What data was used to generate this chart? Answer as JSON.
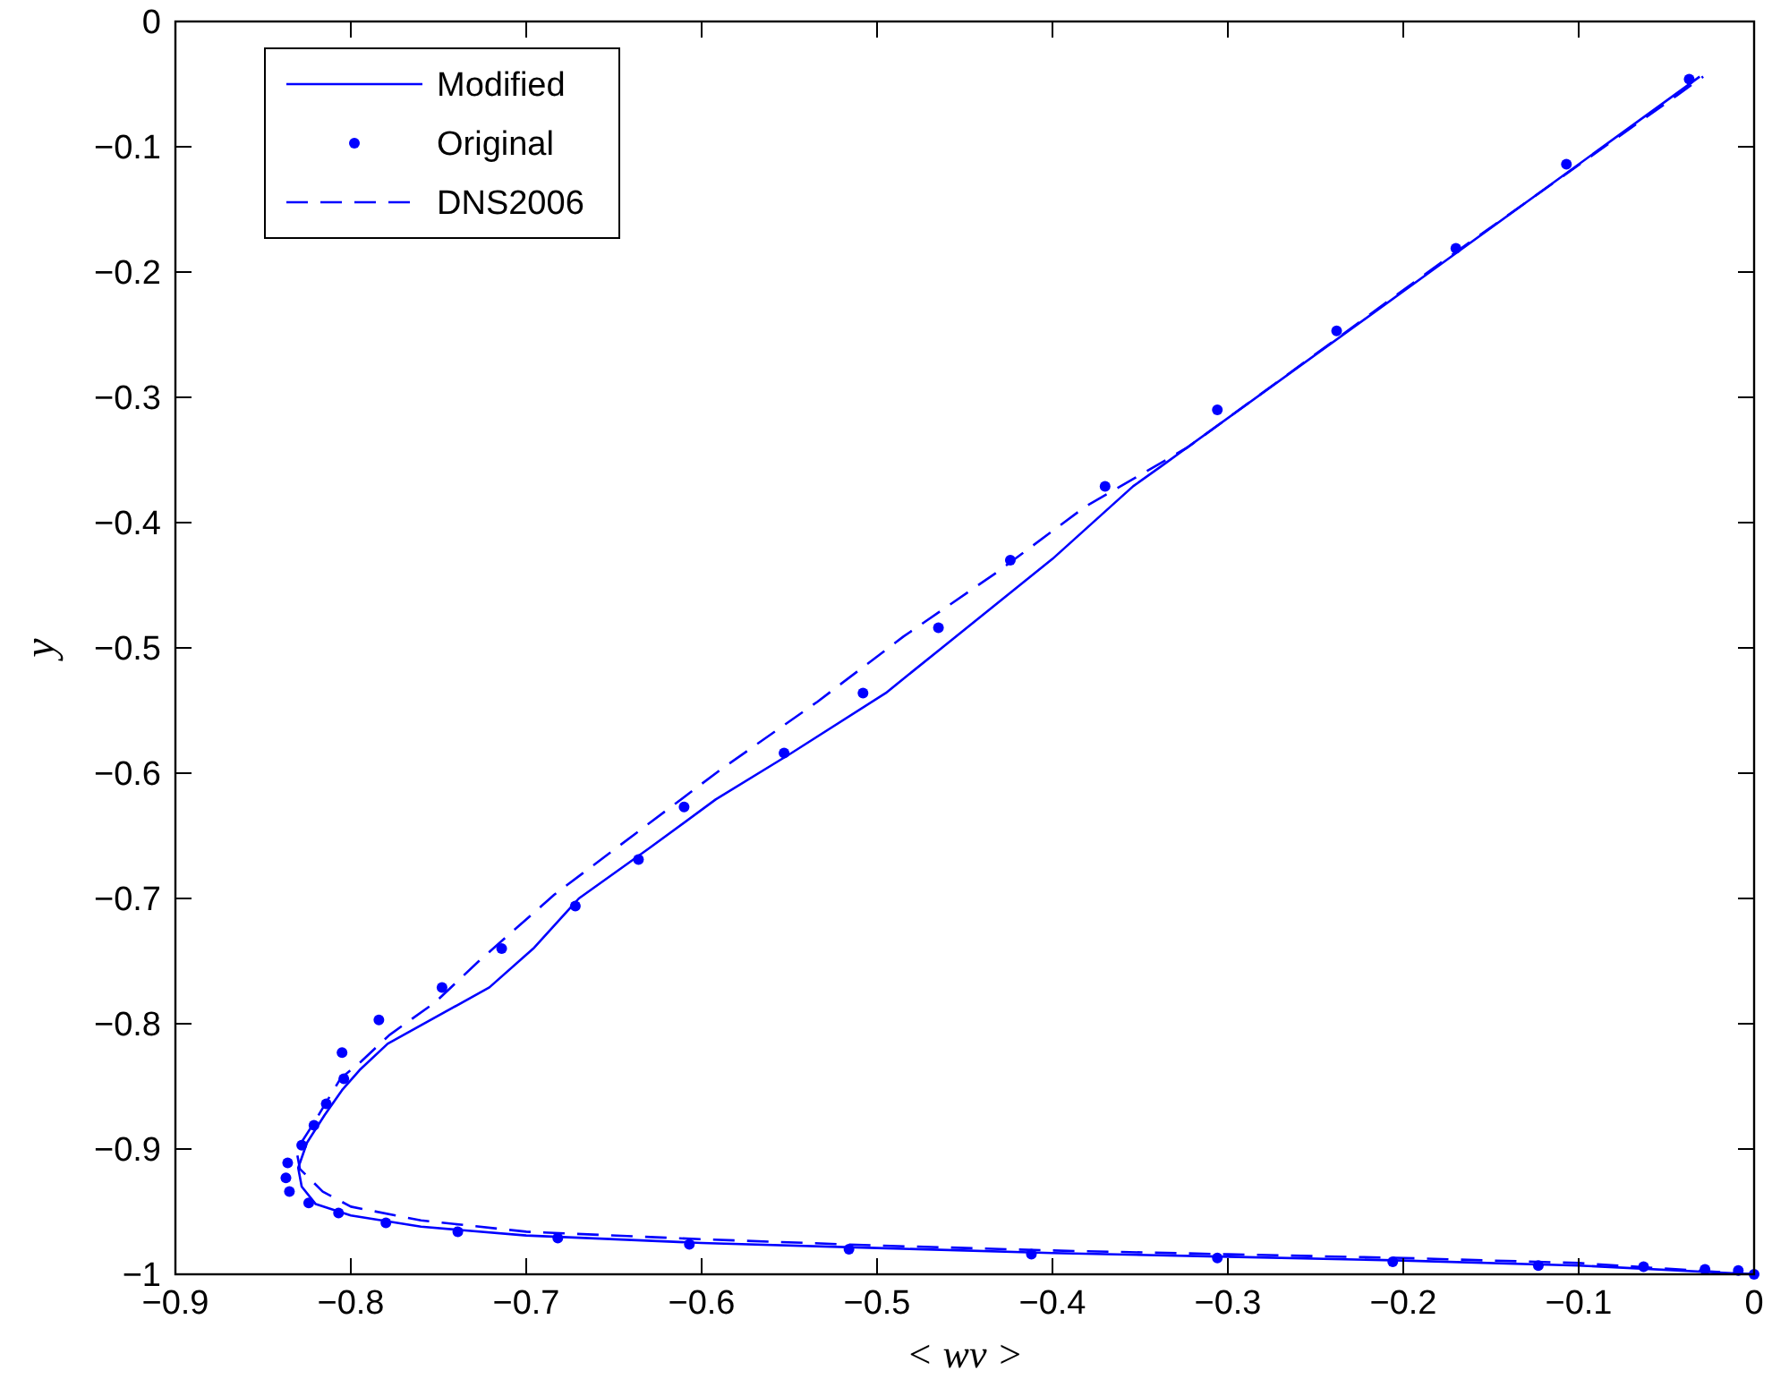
{
  "chart_data": {
    "type": "line",
    "xlabel": "< wv >",
    "ylabel": "y",
    "xlim": [
      -0.9,
      0
    ],
    "ylim": [
      -1,
      0
    ],
    "xticks": [
      -0.9,
      -0.8,
      -0.7,
      -0.6,
      -0.5,
      -0.4,
      -0.3,
      -0.2,
      -0.1,
      0
    ],
    "yticks": [
      -1,
      -0.9,
      -0.8,
      -0.7,
      -0.6,
      -0.5,
      -0.4,
      -0.3,
      -0.2,
      -0.1,
      0
    ],
    "legend": "top left",
    "grid": false,
    "series": [
      {
        "name": "Modified",
        "color": "#0000ff",
        "line_style": "solid",
        "marker": "none",
        "x": [
          0,
          -0.1,
          -0.2,
          -0.3,
          -0.4,
          -0.5,
          -0.6,
          -0.7,
          -0.76,
          -0.8,
          -0.82,
          -0.828,
          -0.83,
          -0.825,
          -0.815,
          -0.805,
          -0.795,
          -0.779,
          -0.721,
          -0.696,
          -0.67,
          -0.63,
          -0.592,
          -0.55,
          -0.495,
          -0.464,
          -0.4,
          -0.354,
          -0.337,
          -0.17,
          -0.031
        ],
        "values": [
          -1,
          -0.993,
          -0.989,
          -0.986,
          -0.983,
          -0.979,
          -0.975,
          -0.969,
          -0.962,
          -0.953,
          -0.944,
          -0.93,
          -0.915,
          -0.895,
          -0.873,
          -0.853,
          -0.837,
          -0.816,
          -0.771,
          -0.74,
          -0.7,
          -0.66,
          -0.621,
          -0.585,
          -0.536,
          -0.501,
          -0.429,
          -0.371,
          -0.354,
          -0.185,
          -0.044
        ]
      },
      {
        "name": "Original",
        "type": "scatter",
        "color": "#0000ff",
        "marker": "circle",
        "x": [
          0,
          -0.009,
          -0.028,
          -0.063,
          -0.123,
          -0.206,
          -0.306,
          -0.412,
          -0.516,
          -0.607,
          -0.682,
          -0.739,
          -0.78,
          -0.807,
          -0.824,
          -0.835,
          -0.837,
          -0.836,
          -0.828,
          -0.821,
          -0.814,
          -0.804,
          -0.805,
          -0.784,
          -0.748,
          -0.714,
          -0.672,
          -0.636,
          -0.61,
          -0.553,
          -0.508,
          -0.465,
          -0.424,
          -0.37,
          -0.306,
          -0.238,
          -0.17,
          -0.107,
          -0.037
        ],
        "values": [
          -1,
          -0.997,
          -0.996,
          -0.994,
          -0.993,
          -0.99,
          -0.987,
          -0.984,
          -0.98,
          -0.976,
          -0.971,
          -0.966,
          -0.959,
          -0.951,
          -0.943,
          -0.934,
          -0.923,
          -0.911,
          -0.897,
          -0.881,
          -0.864,
          -0.844,
          -0.823,
          -0.797,
          -0.771,
          -0.74,
          -0.706,
          -0.669,
          -0.627,
          -0.584,
          -0.536,
          -0.484,
          -0.43,
          -0.371,
          -0.31,
          -0.247,
          -0.181,
          -0.114,
          -0.046
        ]
      },
      {
        "name": "DNS2006",
        "color": "#0000ff",
        "line_style": "dashed",
        "marker": "none",
        "x": [
          0,
          -0.1,
          -0.2,
          -0.3,
          -0.4,
          -0.5,
          -0.6,
          -0.7,
          -0.76,
          -0.8,
          -0.816,
          -0.829,
          -0.831,
          -0.821,
          -0.806,
          -0.794,
          -0.778,
          -0.752,
          -0.727,
          -0.684,
          -0.589,
          -0.534,
          -0.485,
          -0.432,
          -0.381,
          -0.323,
          -0.179,
          -0.044,
          -0.029
        ],
        "values": [
          -1,
          -0.991,
          -0.987,
          -0.984,
          -0.981,
          -0.977,
          -0.972,
          -0.966,
          -0.957,
          -0.946,
          -0.934,
          -0.916,
          -0.901,
          -0.879,
          -0.844,
          -0.83,
          -0.809,
          -0.783,
          -0.75,
          -0.697,
          -0.597,
          -0.543,
          -0.491,
          -0.44,
          -0.387,
          -0.34,
          -0.193,
          -0.059,
          -0.044
        ]
      }
    ]
  }
}
